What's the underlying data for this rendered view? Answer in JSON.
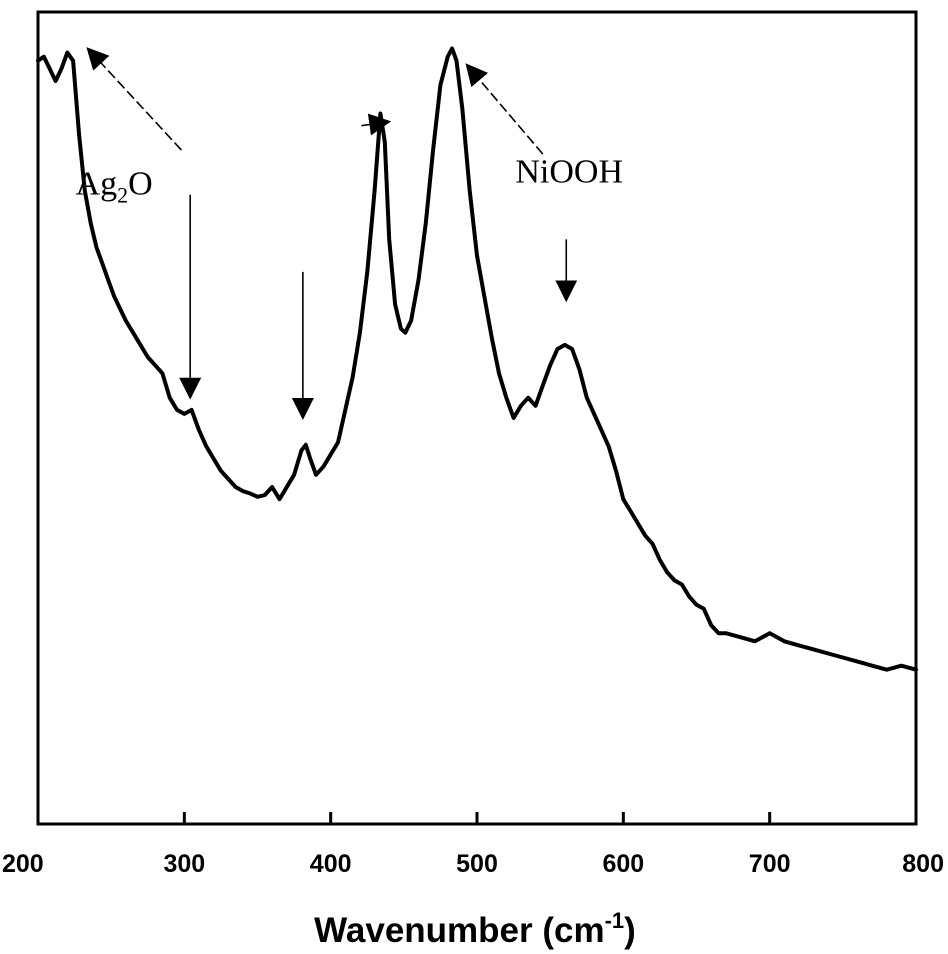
{
  "chart_data": {
    "type": "line",
    "xlabel": {
      "main": "Wavenumber (cm",
      "sup": "-1",
      "close": ")"
    },
    "ylabel": "",
    "xlim": [
      200,
      800
    ],
    "ylim": [
      0,
      100
    ],
    "xticks": [
      200,
      300,
      400,
      500,
      600,
      700,
      800
    ],
    "grid": false,
    "legend": "none",
    "line_color": "#000000",
    "series": [
      {
        "points": [
          [
            200,
            94.0
          ],
          [
            204,
            94.5
          ],
          [
            208,
            93.0
          ],
          [
            212,
            91.5
          ],
          [
            216,
            93.0
          ],
          [
            220,
            95.0
          ],
          [
            224,
            94.0
          ],
          [
            228,
            85.0
          ],
          [
            232,
            78.0
          ],
          [
            236,
            74.0
          ],
          [
            240,
            71.0
          ],
          [
            244,
            69.0
          ],
          [
            248,
            67.0
          ],
          [
            252,
            65.0
          ],
          [
            256,
            63.5
          ],
          [
            260,
            62.0
          ],
          [
            265,
            60.5
          ],
          [
            270,
            59.0
          ],
          [
            275,
            57.5
          ],
          [
            280,
            56.5
          ],
          [
            285,
            55.5
          ],
          [
            290,
            52.5
          ],
          [
            295,
            51.0
          ],
          [
            300,
            50.5
          ],
          [
            305,
            51.0
          ],
          [
            310,
            48.5
          ],
          [
            315,
            46.5
          ],
          [
            320,
            45.0
          ],
          [
            325,
            43.5
          ],
          [
            330,
            42.5
          ],
          [
            335,
            41.5
          ],
          [
            340,
            41.0
          ],
          [
            345,
            40.7
          ],
          [
            350,
            40.3
          ],
          [
            355,
            40.5
          ],
          [
            360,
            41.5
          ],
          [
            365,
            40.0
          ],
          [
            370,
            41.5
          ],
          [
            375,
            43.0
          ],
          [
            380,
            46.0
          ],
          [
            383,
            46.7
          ],
          [
            386,
            45.0
          ],
          [
            390,
            43.0
          ],
          [
            395,
            44.0
          ],
          [
            400,
            45.5
          ],
          [
            405,
            47.0
          ],
          [
            410,
            51.0
          ],
          [
            415,
            55.0
          ],
          [
            420,
            60.5
          ],
          [
            425,
            68.0
          ],
          [
            430,
            78.0
          ],
          [
            434,
            87.5
          ],
          [
            437,
            84.0
          ],
          [
            440,
            72.0
          ],
          [
            444,
            64.0
          ],
          [
            448,
            61.0
          ],
          [
            451,
            60.5
          ],
          [
            455,
            62.0
          ],
          [
            460,
            67.0
          ],
          [
            465,
            74.0
          ],
          [
            470,
            83.0
          ],
          [
            475,
            91.0
          ],
          [
            480,
            94.5
          ],
          [
            483,
            95.5
          ],
          [
            486,
            94.0
          ],
          [
            490,
            88.0
          ],
          [
            495,
            78.0
          ],
          [
            500,
            70.0
          ],
          [
            505,
            65.0
          ],
          [
            510,
            60.0
          ],
          [
            515,
            55.5
          ],
          [
            520,
            52.5
          ],
          [
            525,
            50.0
          ],
          [
            530,
            51.5
          ],
          [
            535,
            52.5
          ],
          [
            540,
            51.5
          ],
          [
            545,
            54.0
          ],
          [
            550,
            56.5
          ],
          [
            555,
            58.5
          ],
          [
            560,
            59.0
          ],
          [
            565,
            58.5
          ],
          [
            570,
            56.0
          ],
          [
            575,
            52.5
          ],
          [
            580,
            50.5
          ],
          [
            585,
            48.5
          ],
          [
            590,
            46.5
          ],
          [
            595,
            43.5
          ],
          [
            600,
            40.0
          ],
          [
            605,
            38.5
          ],
          [
            610,
            37.0
          ],
          [
            615,
            35.5
          ],
          [
            620,
            34.5
          ],
          [
            625,
            32.5
          ],
          [
            630,
            31.0
          ],
          [
            635,
            30.0
          ],
          [
            640,
            29.5
          ],
          [
            645,
            28.0
          ],
          [
            650,
            27.0
          ],
          [
            655,
            26.5
          ],
          [
            660,
            24.5
          ],
          [
            665,
            23.5
          ],
          [
            670,
            23.5
          ],
          [
            680,
            23.0
          ],
          [
            690,
            22.5
          ],
          [
            700,
            23.5
          ],
          [
            710,
            22.5
          ],
          [
            720,
            22.0
          ],
          [
            730,
            21.5
          ],
          [
            740,
            21.0
          ],
          [
            750,
            20.5
          ],
          [
            760,
            20.0
          ],
          [
            770,
            19.5
          ],
          [
            780,
            19.0
          ],
          [
            790,
            19.5
          ],
          [
            800,
            19.0
          ]
        ]
      }
    ],
    "annotations": [
      {
        "label": {
          "base": "Ag",
          "sub": "2",
          "tail": "O"
        },
        "label_at": [
          252,
          77.5
        ],
        "arrows": [
          {
            "from": [
              298,
              83.0
            ],
            "to": [
              234,
              95.5
            ]
          },
          {
            "from": [
              304,
              77.5
            ],
            "to": [
              304,
              52.5
            ]
          },
          {
            "from": [
              381,
              68.0
            ],
            "to": [
              381,
              50.0
            ]
          },
          {
            "from": [
              421,
              86.0
            ],
            "to": [
              440,
              86.5
            ]
          }
        ]
      },
      {
        "label": {
          "base": "NiOOH",
          "sub": "",
          "tail": ""
        },
        "label_at": [
          563,
          79.0
        ],
        "arrows": [
          {
            "from": [
              545,
              82.5
            ],
            "to": [
              493,
              93.5
            ]
          },
          {
            "from": [
              561,
              72.0
            ],
            "to": [
              561,
              64.5
            ]
          }
        ]
      }
    ]
  }
}
